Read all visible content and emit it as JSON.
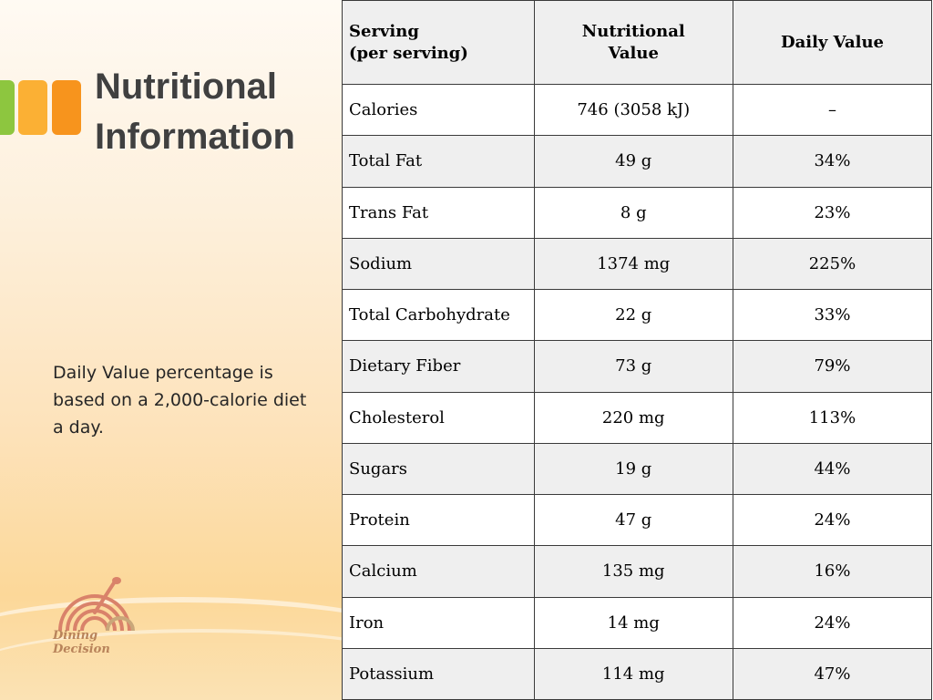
{
  "slide": {
    "title_line1": "Nutritional",
    "title_line2": "Information",
    "note": "Daily Value percentage is based on a 2,000-calorie diet a day.",
    "logo_text": "Dining Decision",
    "accent_colors": [
      "#8dc63f",
      "#fbb034",
      "#f7941d"
    ]
  },
  "table": {
    "headers": {
      "serving_line1": "Serving",
      "serving_line2": "(per serving)",
      "nutritional_line1": "Nutritional",
      "nutritional_line2": "Value",
      "daily_value": "Daily Value"
    },
    "rows": [
      {
        "nutrient": "Calories",
        "value": "746 (3058 kJ)",
        "dv": "–"
      },
      {
        "nutrient": "Total Fat",
        "value": "49 g",
        "dv": "34%"
      },
      {
        "nutrient": "Trans Fat",
        "value": "8 g",
        "dv": "23%"
      },
      {
        "nutrient": "Sodium",
        "value": "1374 mg",
        "dv": "225%"
      },
      {
        "nutrient": "Total Carbohydrate",
        "value": "22 g",
        "dv": "33%"
      },
      {
        "nutrient": "Dietary Fiber",
        "value": "73 g",
        "dv": "79%"
      },
      {
        "nutrient": "Cholesterol",
        "value": "220 mg",
        "dv": "113%"
      },
      {
        "nutrient": "Sugars",
        "value": "19 g",
        "dv": "44%"
      },
      {
        "nutrient": "Protein",
        "value": "47 g",
        "dv": "24%"
      },
      {
        "nutrient": "Calcium",
        "value": "135 mg",
        "dv": "16%"
      },
      {
        "nutrient": "Iron",
        "value": "14 mg",
        "dv": "24%"
      },
      {
        "nutrient": "Potassium",
        "value": "114 mg",
        "dv": "47%"
      }
    ]
  }
}
